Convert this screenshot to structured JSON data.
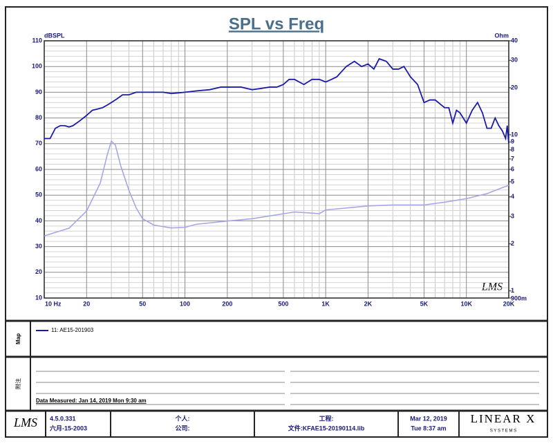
{
  "chart_data": {
    "type": "line",
    "title": "SPL vs Freq",
    "ylabel": "dBSPL",
    "y2label": "Ohm",
    "logo": "LMS",
    "xlog": true,
    "y2log": true,
    "grid": true,
    "xlim": [
      10,
      20000
    ],
    "xticks": [
      {
        "value": 10,
        "label": "10 Hz"
      },
      20,
      50,
      100,
      200,
      500,
      {
        "value": 1000,
        "label": "1K"
      },
      {
        "value": 2000,
        "label": "2K"
      },
      {
        "value": 5000,
        "label": "5K"
      },
      {
        "value": 10000,
        "label": "10K"
      },
      {
        "value": 20000,
        "label": "20K"
      }
    ],
    "xminorticks": [
      30,
      40,
      60,
      70,
      80,
      90,
      300,
      400,
      600,
      700,
      800,
      900,
      3000,
      4000,
      6000,
      7000,
      8000,
      9000
    ],
    "ylim": [
      10,
      110
    ],
    "yticks": [
      10,
      20,
      30,
      40,
      50,
      60,
      70,
      80,
      90,
      100,
      110
    ],
    "yminorticks": [
      12,
      14,
      16,
      18,
      22,
      24,
      26,
      28,
      32,
      34,
      36,
      38,
      42,
      44,
      46,
      48,
      52,
      54,
      56,
      58,
      62,
      64,
      66,
      68,
      72,
      74,
      76,
      78,
      82,
      84,
      86,
      88,
      92,
      94,
      96,
      98,
      102,
      104,
      106,
      108
    ],
    "y2lim": [
      0.9,
      40
    ],
    "y2ticks": [
      40,
      30,
      20,
      10,
      9,
      8,
      7,
      6,
      5,
      4,
      3,
      2,
      1,
      {
        "value": 0.9,
        "label": "900m"
      }
    ],
    "series": [
      {
        "name": "11: AE15-201903",
        "color": "#1a1aa8",
        "x": [
          10,
          11,
          12,
          13,
          14,
          15,
          16,
          18,
          20,
          22,
          24,
          26,
          28,
          30,
          33,
          36,
          40,
          45,
          50,
          60,
          70,
          80,
          100,
          120,
          150,
          180,
          200,
          250,
          300,
          350,
          400,
          450,
          500,
          550,
          600,
          700,
          800,
          900,
          1000,
          1100,
          1200,
          1400,
          1600,
          1800,
          2000,
          2200,
          2400,
          2700,
          3000,
          3300,
          3600,
          4000,
          4500,
          5000,
          5500,
          6000,
          7000,
          7500,
          8000,
          8500,
          9000,
          10000,
          11000,
          12000,
          13000,
          14000,
          15000,
          16000,
          17000,
          18000,
          19000,
          19500,
          20000
        ],
        "values": [
          72,
          72,
          76,
          77,
          77,
          76.5,
          77,
          79,
          81,
          83,
          83.5,
          84,
          85,
          86,
          87.5,
          89,
          89,
          90,
          90,
          90,
          90,
          89.5,
          90,
          90.5,
          91,
          92,
          92,
          92,
          91,
          91.5,
          92,
          92,
          93,
          95,
          95,
          93,
          95,
          95,
          94,
          95,
          96,
          100,
          102,
          100,
          101,
          99,
          103,
          102,
          99,
          99,
          100,
          96,
          93,
          86,
          87,
          87,
          84,
          84,
          78,
          83,
          82,
          78,
          83,
          86,
          82,
          76,
          76,
          80,
          77,
          75,
          72,
          77,
          70
        ]
      },
      {
        "color": "#a6a6e6",
        "axis": "y2",
        "x": [
          10,
          15,
          20,
          25,
          28,
          30,
          32,
          35,
          40,
          45,
          50,
          60,
          80,
          100,
          120,
          200,
          300,
          500,
          600,
          800,
          900,
          1000,
          1200,
          2000,
          3000,
          5000,
          7000,
          10000,
          14000,
          20000
        ],
        "values": [
          2.25,
          2.52,
          3.25,
          4.9,
          7.4,
          9.1,
          8.6,
          6.3,
          4.4,
          3.4,
          2.9,
          2.64,
          2.53,
          2.55,
          2.67,
          2.8,
          2.9,
          3.12,
          3.2,
          3.15,
          3.12,
          3.3,
          3.35,
          3.5,
          3.55,
          3.55,
          3.7,
          3.9,
          4.2,
          4.75
        ]
      }
    ]
  },
  "map": {
    "label": "Map"
  },
  "notes": {
    "label": "附注",
    "measured": "Data Measured: Jan 14, 2019  Mon  9:30 am"
  },
  "footer": {
    "logo": "LMS",
    "version": "4.5.0.331",
    "build_date": "六月-15-2003",
    "person": "个人:",
    "company": "公司:",
    "project": "工程:",
    "file": "文件:KFAE15-20190114.lib",
    "date": "Mar 12, 2019",
    "time": "Tue  8:37 am",
    "brand": "LINEAR X",
    "brand_sub": "S Y S T E M S"
  }
}
